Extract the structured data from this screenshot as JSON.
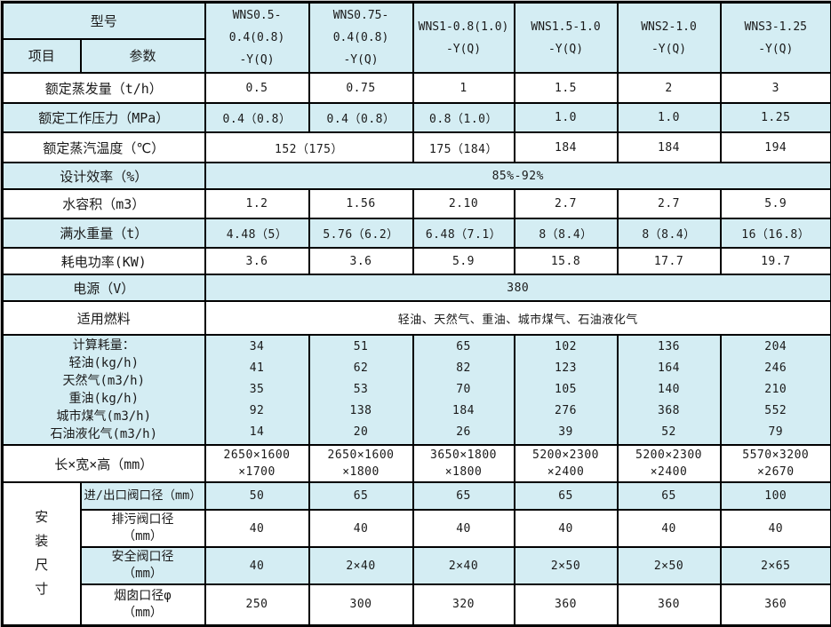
{
  "colors": {
    "shade": "#d4edf3",
    "border": "#000000",
    "text": "#1a1a1a"
  },
  "table": {
    "corner": {
      "model": "型号",
      "item": "项目",
      "param": "参数"
    },
    "models": [
      {
        "lines": [
          "WNS0.5-0.4(0.8)",
          "-Y(Q)"
        ]
      },
      {
        "lines": [
          "WNS0.75-0.4(0.8)",
          "-Y(Q)"
        ]
      },
      {
        "lines": [
          "WNS1-0.8(1.0)",
          "-Y(Q)"
        ]
      },
      {
        "lines": [
          "WNS1.5-1.0",
          "-Y(Q)"
        ]
      },
      {
        "lines": [
          "WNS2-1.0",
          "-Y(Q)"
        ]
      },
      {
        "lines": [
          "WNS3-1.25",
          "-Y(Q)"
        ]
      }
    ],
    "rows": [
      {
        "name": "rated-evaporation",
        "shaded": false,
        "label": "额定蒸发量（t/h）",
        "cells": [
          "0.5",
          "0.75",
          "1",
          "1.5",
          "2",
          "3"
        ]
      },
      {
        "name": "rated-working-pressure",
        "shaded": true,
        "label": "额定工作压力（MPa）",
        "cells": [
          "0.4（0.8）",
          "0.4（0.8）",
          "0.8（1.0）",
          "1.0",
          "1.0",
          "1.25"
        ]
      },
      {
        "name": "rated-steam-temperature",
        "shaded": false,
        "label": "额定蒸汽温度（℃）",
        "cells": [
          {
            "text": "152（175）",
            "span": 2
          },
          "175（184）",
          "184",
          "184",
          "194"
        ]
      },
      {
        "name": "design-efficiency",
        "shaded": true,
        "label": "设计效率（%）",
        "cells": [
          {
            "text": "85%-92%",
            "span": 6
          }
        ]
      },
      {
        "name": "water-volume",
        "shaded": false,
        "label": "水容积（m3）",
        "cells": [
          "1.2",
          "1.56",
          "2.10",
          "2.7",
          "2.7",
          "5.9"
        ]
      },
      {
        "name": "full-water-weight",
        "shaded": true,
        "label": "满水重量（t）",
        "cells": [
          "4.48（5）",
          "5.76（6.2）",
          "6.48（7.1）",
          "8（8.4）",
          "8（8.4）",
          "16（16.8）"
        ]
      },
      {
        "name": "power-consumption",
        "shaded": false,
        "label": "耗电功率(KW)",
        "cells": [
          "3.6",
          "3.6",
          "5.9",
          "15.8",
          "17.7",
          "19.7"
        ]
      },
      {
        "name": "power-supply",
        "shaded": true,
        "label": "电源（V）",
        "cells": [
          {
            "text": "380",
            "span": 6
          }
        ]
      },
      {
        "name": "applicable-fuel",
        "shaded": false,
        "label": "适用燃料",
        "cells": [
          {
            "text": "轻油、天然气、重油、城市煤气、石油液化气",
            "span": 6
          }
        ]
      },
      {
        "name": "calculated-consumption",
        "shaded": true,
        "label_lines": [
          "计算耗量：",
          "轻油(kg/h)",
          "天然气(m3/h)",
          "重油(kg/h)",
          "城市煤气(m3/h)",
          "石油液化气(m3/h)"
        ],
        "cells": [
          {
            "lines": [
              "34",
              "41",
              "35",
              "92",
              "14"
            ]
          },
          {
            "lines": [
              "51",
              "62",
              "53",
              "138",
              "20"
            ]
          },
          {
            "lines": [
              "65",
              "82",
              "70",
              "184",
              "26"
            ]
          },
          {
            "lines": [
              "102",
              "123",
              "105",
              "276",
              "39"
            ]
          },
          {
            "lines": [
              "136",
              "164",
              "140",
              "368",
              "52"
            ]
          },
          {
            "lines": [
              "204",
              "246",
              "210",
              "552",
              "79"
            ]
          }
        ]
      },
      {
        "name": "dimensions",
        "shaded": false,
        "label": "长×宽×高（mm）",
        "cells": [
          {
            "lines": [
              "2650×1600",
              "×1700"
            ]
          },
          {
            "lines": [
              "2650×1600",
              "×1800"
            ]
          },
          {
            "lines": [
              "3650×1800",
              "×1800"
            ]
          },
          {
            "lines": [
              "5200×2300",
              "×2400"
            ]
          },
          {
            "lines": [
              "5200×2300",
              "×2400"
            ]
          },
          {
            "lines": [
              "5570×3200",
              "×2670"
            ]
          }
        ]
      }
    ],
    "install": {
      "title_chars": [
        "安",
        "装",
        "尺",
        "寸"
      ],
      "rows": [
        {
          "name": "inlet-outlet-valve-diameter",
          "shaded": true,
          "label_lines": [
            "进/出口阀口径（mm）"
          ],
          "cells": [
            "50",
            "65",
            "65",
            "65",
            "65",
            "100"
          ]
        },
        {
          "name": "blowdown-valve-diameter",
          "shaded": false,
          "label_lines": [
            "排污阀口径",
            "（mm）"
          ],
          "cells": [
            "40",
            "40",
            "40",
            "40",
            "40",
            "40"
          ]
        },
        {
          "name": "safety-valve-diameter",
          "shaded": true,
          "label_lines": [
            "安全阀口径",
            "（mm）"
          ],
          "cells": [
            "40",
            "2×40",
            "2×40",
            "2×50",
            "2×50",
            "2×65"
          ]
        },
        {
          "name": "chimney-diameter",
          "shaded": false,
          "label_lines": [
            "烟囱口径φ",
            "（mm）"
          ],
          "cells": [
            "250",
            "300",
            "320",
            "360",
            "360",
            "360"
          ]
        }
      ]
    }
  }
}
